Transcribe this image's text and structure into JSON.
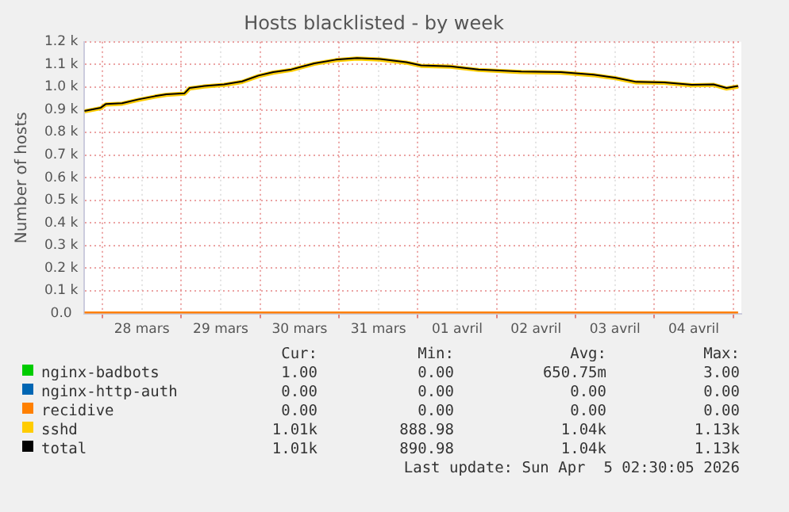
{
  "chart_data": {
    "type": "line",
    "title": "Hosts blacklisted - by week",
    "ylabel": "Number of hosts",
    "xlim": [
      "--03-27T18:30",
      "--04-05T02:30"
    ],
    "xticks": [
      {
        "value": "--03-28T00:00",
        "label": null
      },
      {
        "value": "--03-28T12:00",
        "label": "28 mars"
      },
      {
        "value": "--03-29T00:00",
        "label": null
      },
      {
        "value": "--03-29T12:00",
        "label": "29 mars"
      },
      {
        "value": "--03-30T00:00",
        "label": null
      },
      {
        "value": "--03-30T12:00",
        "label": "30 mars"
      },
      {
        "value": "--03-31T00:00",
        "label": null
      },
      {
        "value": "--03-31T12:00",
        "label": "31 mars"
      },
      {
        "value": "--04-01T00:00",
        "label": null
      },
      {
        "value": "--04-01T12:00",
        "label": "01 avril"
      },
      {
        "value": "--04-02T00:00",
        "label": null
      },
      {
        "value": "--04-02T12:00",
        "label": "02 avril"
      },
      {
        "value": "--04-03T00:00",
        "label": null
      },
      {
        "value": "--04-03T12:00",
        "label": "03 avril"
      },
      {
        "value": "--04-04T00:00",
        "label": null
      },
      {
        "value": "--04-04T12:00",
        "label": "04 avril"
      },
      {
        "value": "--04-05T00:00",
        "label": null
      }
    ],
    "ylim": [
      0,
      1200
    ],
    "yticks": [
      {
        "value": 0,
        "label": "0.0"
      },
      {
        "value": 100,
        "label": "0.1 k"
      },
      {
        "value": 200,
        "label": "0.2 k"
      },
      {
        "value": 300,
        "label": "0.3 k"
      },
      {
        "value": 400,
        "label": "0.4 k"
      },
      {
        "value": 500,
        "label": "0.5 k"
      },
      {
        "value": 600,
        "label": "0.6 k"
      },
      {
        "value": 700,
        "label": "0.7 k"
      },
      {
        "value": 800,
        "label": "0.8 k"
      },
      {
        "value": 900,
        "label": "0.9 k"
      },
      {
        "value": 1000,
        "label": "1.0 k"
      },
      {
        "value": 1100,
        "label": "1.1 k"
      },
      {
        "value": 1200,
        "label": "1.2 k"
      }
    ],
    "grid": true,
    "legend": "bottom",
    "marker": "none",
    "x": [
      "--03-27T18:30",
      "--03-27T23:30",
      "--03-28T01:00",
      "--03-28T06:00",
      "--03-28T11:00",
      "--03-28T16:00",
      "--03-28T19:30",
      "--03-29T01:00",
      "--03-29T02:30",
      "--03-29T07:00",
      "--03-29T13:00",
      "--03-29T18:30",
      "--03-29T23:30",
      "--03-30T04:00",
      "--03-30T09:30",
      "--03-30T16:30",
      "--03-30T23:00",
      "--03-31T05:30",
      "--03-31T12:30",
      "--03-31T20:30",
      "--04-01T01:00",
      "--04-01T10:00",
      "--04-01T18:30",
      "--04-02T07:30",
      "--04-02T19:30",
      "--04-03T05:30",
      "--04-03T12:00",
      "--04-03T18:30",
      "--04-04T03:00",
      "--04-04T11:30",
      "--04-04T18:00",
      "--04-04T22:00",
      "--04-05T01:30"
    ],
    "series": [
      {
        "name": "nginx-badbots",
        "color": "#00cc00",
        "values": [
          null,
          null,
          null,
          null,
          null,
          null,
          null,
          null,
          null,
          null,
          null,
          null,
          null,
          null,
          null,
          null,
          null,
          null,
          null,
          null,
          null,
          null,
          null,
          null,
          null,
          null,
          null,
          null,
          null,
          null,
          null,
          null,
          null
        ]
      },
      {
        "name": "nginx-http-auth",
        "color": "#0066b3",
        "values": [
          null,
          null,
          null,
          null,
          null,
          null,
          null,
          null,
          null,
          null,
          null,
          null,
          null,
          null,
          null,
          null,
          null,
          null,
          null,
          null,
          null,
          null,
          null,
          null,
          null,
          null,
          null,
          null,
          null,
          null,
          null,
          null,
          null
        ]
      },
      {
        "name": "recidive",
        "color": "#ff8000",
        "x": [
          "--03-27T18:30",
          "--04-05T01:30"
        ],
        "values": [
          0,
          0
        ]
      },
      {
        "name": "sshd",
        "color": "#ffcc00",
        "values": [
          893,
          907,
          923,
          927,
          944,
          958,
          966,
          971,
          994,
          1003,
          1010,
          1023,
          1049,
          1064,
          1076,
          1103,
          1119,
          1126,
          1122,
          1108,
          1094,
          1090,
          1076,
          1067,
          1064,
          1053,
          1040,
          1021,
          1019,
          1008,
          1010,
          994,
          1003
        ]
      },
      {
        "name": "total",
        "color": "#000000",
        "values": [
          895,
          909,
          925,
          929,
          946,
          960,
          968,
          973,
          996,
          1005,
          1012,
          1025,
          1051,
          1066,
          1078,
          1105,
          1121,
          1128,
          1124,
          1110,
          1096,
          1092,
          1078,
          1069,
          1066,
          1055,
          1042,
          1023,
          1021,
          1010,
          1012,
          996,
          1005
        ]
      }
    ],
    "annotations": [
      "Cur:",
      "Min:",
      "Avg:",
      "Max:",
      "1.00",
      "0.00",
      "650.75m",
      "3.00",
      "0.00",
      "0.00",
      "0.00",
      "0.00",
      "0.00",
      "0.00",
      "0.00",
      "0.00",
      "1.01k",
      "888.98",
      "1.04k",
      "1.13k",
      "1.01k",
      "890.98",
      "1.04k",
      "1.13k",
      "Last update: Sun Apr  5 02:30:05 2026"
    ]
  }
}
